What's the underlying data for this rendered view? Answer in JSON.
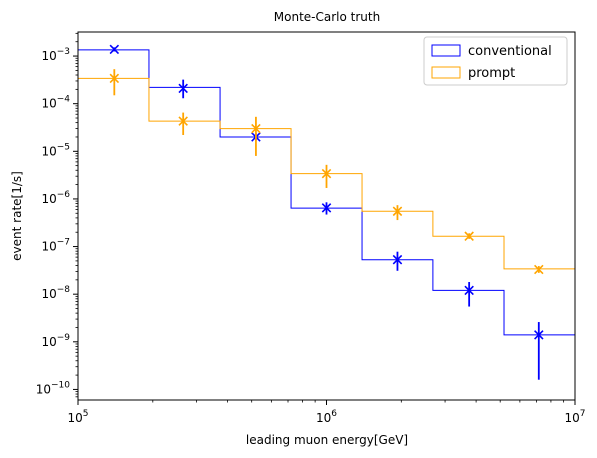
{
  "chart_data": {
    "type": "histogram-step",
    "title": "Monte-Carlo truth",
    "xlabel": "leading muon energy[GeV]",
    "ylabel": "event rate[1/s]",
    "xscale": "log",
    "yscale": "log",
    "xlim": [
      100000,
      10000000
    ],
    "ylim": [
      6e-11,
      0.0032
    ],
    "x_ticks": [
      {
        "value": 100000,
        "base": "10",
        "exp": "5"
      },
      {
        "value": 1000000,
        "base": "10",
        "exp": "6"
      },
      {
        "value": 10000000,
        "base": "10",
        "exp": "7"
      }
    ],
    "y_ticks": [
      {
        "value": 1e-10,
        "base": "10",
        "exp": "−10"
      },
      {
        "value": 1e-09,
        "base": "10",
        "exp": "−9"
      },
      {
        "value": 1e-08,
        "base": "10",
        "exp": "−8"
      },
      {
        "value": 1e-07,
        "base": "10",
        "exp": "−7"
      },
      {
        "value": 1e-06,
        "base": "10",
        "exp": "−6"
      },
      {
        "value": 1e-05,
        "base": "10",
        "exp": "−5"
      },
      {
        "value": 0.0001,
        "base": "10",
        "exp": "−4"
      },
      {
        "value": 0.001,
        "base": "10",
        "exp": "−3"
      }
    ],
    "bin_edges": [
      100000,
      193000,
      373000,
      720000,
      1390000,
      2680000,
      5180000,
      10000000
    ],
    "legend_position": "top-right",
    "grid": false,
    "series": [
      {
        "name": "conventional",
        "color": "#0000ff",
        "step_values": [
          0.00135,
          0.00022,
          2e-05,
          6.4e-07,
          5.3e-08,
          1.2e-08,
          1.4e-09
        ],
        "points": [
          {
            "x": 140000,
            "y": 0.00138,
            "ylo": 0.00125,
            "yhi": 0.00152
          },
          {
            "x": 265000,
            "y": 0.00021,
            "ylo": 0.00013,
            "yhi": 0.00032
          },
          {
            "x": 520000,
            "y": 2e-05,
            "ylo": 1.7e-05,
            "yhi": 2.4e-05
          },
          {
            "x": 1000000,
            "y": 6.5e-07,
            "ylo": 4.7e-07,
            "yhi": 8.5e-07
          },
          {
            "x": 1930000,
            "y": 5.3e-08,
            "ylo": 3.1e-08,
            "yhi": 7.8e-08
          },
          {
            "x": 3750000,
            "y": 1.2e-08,
            "ylo": 5.5e-09,
            "yhi": 1.8e-08
          },
          {
            "x": 7150000,
            "y": 1.4e-09,
            "ylo": 1.6e-10,
            "yhi": 2.6e-09
          }
        ]
      },
      {
        "name": "prompt",
        "color": "#ffa500",
        "step_values": [
          0.00034,
          4.3e-05,
          3e-05,
          3.4e-06,
          5.5e-07,
          1.65e-07,
          3.4e-08
        ],
        "points": [
          {
            "x": 140000,
            "y": 0.00034,
            "ylo": 0.00015,
            "yhi": 0.00053
          },
          {
            "x": 265000,
            "y": 4.3e-05,
            "ylo": 2.2e-05,
            "yhi": 6.5e-05
          },
          {
            "x": 520000,
            "y": 3e-05,
            "ylo": 8e-06,
            "yhi": 5.3e-05
          },
          {
            "x": 1000000,
            "y": 3.4e-06,
            "ylo": 1.7e-06,
            "yhi": 5.2e-06
          },
          {
            "x": 1930000,
            "y": 5.5e-07,
            "ylo": 3.6e-07,
            "yhi": 7.4e-07
          },
          {
            "x": 3750000,
            "y": 1.65e-07,
            "ylo": 1.45e-07,
            "yhi": 1.9e-07
          },
          {
            "x": 7150000,
            "y": 3.3e-08,
            "ylo": 2.8e-08,
            "yhi": 3.9e-08
          }
        ]
      }
    ]
  }
}
